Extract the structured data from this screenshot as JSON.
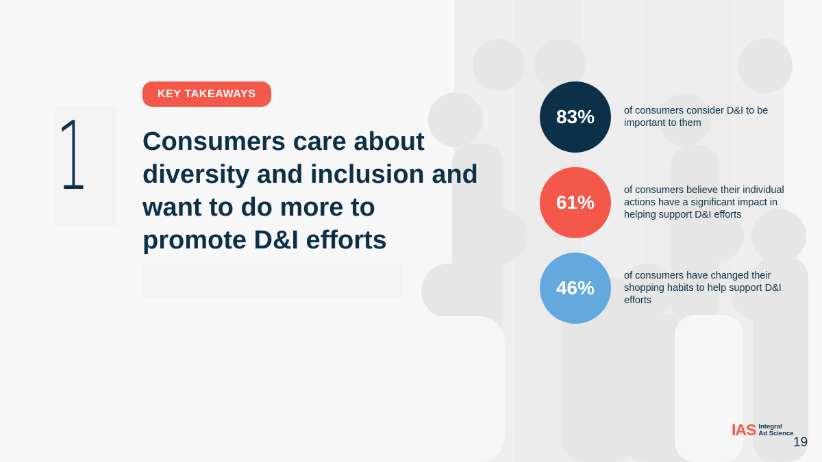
{
  "slide": {
    "section_number": "1",
    "badge": "KEY TAKEAWAYS",
    "headline": "Consumers care about diversity and inclusion and want to do more to promote D&I efforts",
    "page_number": "19"
  },
  "stats": [
    {
      "value": "83%",
      "description": "of consumers consider D&I to be important to them",
      "color": "#0c3048"
    },
    {
      "value": "61%",
      "description": "of consumers believe their individual actions have a significant impact in helping support D&I efforts",
      "color": "#f4584a"
    },
    {
      "value": "46%",
      "description": "of consumers have changed their shopping habits to help support D&I efforts",
      "color": "#64a9de"
    }
  ],
  "logo": {
    "mark": "IAS",
    "line1": "Integral",
    "line2": "Ad Science"
  },
  "colors": {
    "navy": "#0c3048",
    "coral": "#f4584a",
    "sky": "#64a9de",
    "background": "#f7f7f7"
  }
}
